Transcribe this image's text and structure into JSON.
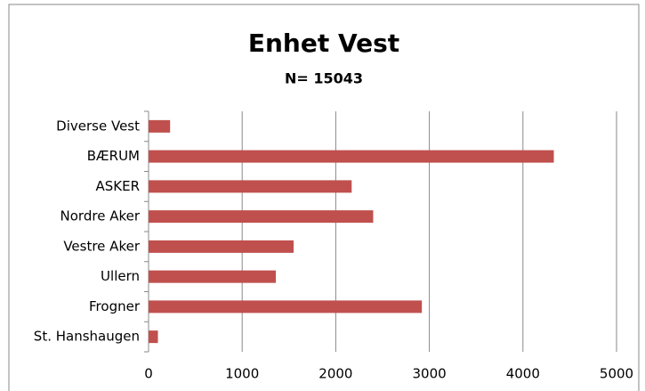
{
  "chart_data": {
    "type": "barh",
    "title": "Enhet Vest",
    "subtitle": "N= 15043",
    "categories": [
      "Diverse Vest",
      "BÆRUM",
      "ASKER",
      "Nordre Aker",
      "Vestre Aker",
      "Ullern",
      "Frogner",
      "St. Hanshaugen"
    ],
    "values": [
      230,
      4330,
      2170,
      2400,
      1550,
      1360,
      2920,
      100
    ],
    "color": "#c0504d",
    "xlim": [
      0,
      5000
    ],
    "xticks": [
      0,
      1000,
      2000,
      3000,
      4000,
      5000
    ],
    "grid": true
  }
}
